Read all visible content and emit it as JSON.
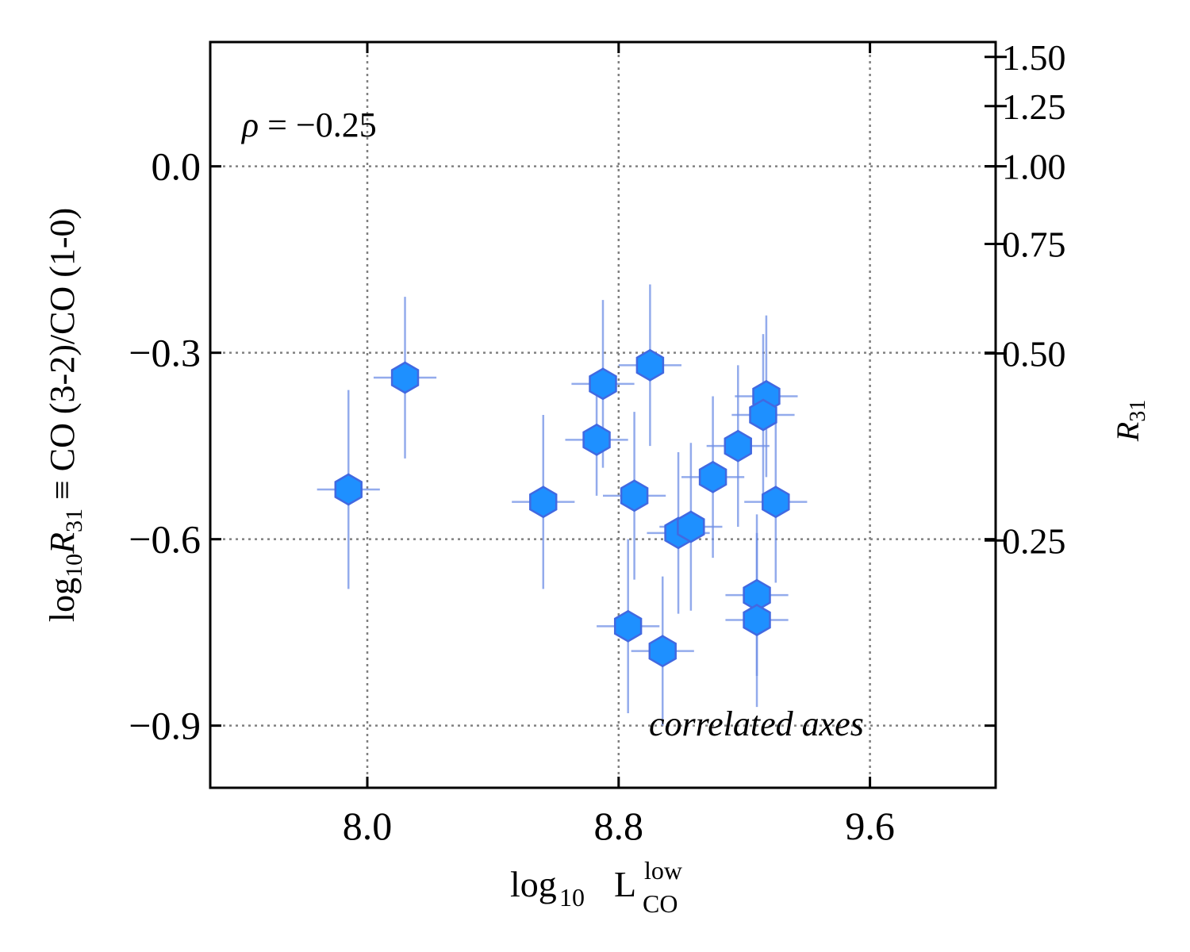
{
  "chart_data": {
    "type": "scatter",
    "x": [
      7.94,
      8.12,
      8.56,
      8.75,
      8.73,
      8.9,
      8.85,
      8.83,
      8.94,
      8.99,
      9.03,
      9.1,
      9.18,
      9.27,
      9.26,
      9.3,
      9.24,
      9.24
    ],
    "values": [
      -0.52,
      -0.34,
      -0.54,
      -0.35,
      -0.44,
      -0.32,
      -0.53,
      -0.74,
      -0.78,
      -0.59,
      -0.58,
      -0.5,
      -0.45,
      -0.37,
      -0.4,
      -0.54,
      -0.69,
      -0.73
    ],
    "xerr": [
      0.1,
      0.1,
      0.1,
      0.1,
      0.1,
      0.1,
      0.1,
      0.1,
      0.1,
      0.1,
      0.1,
      0.1,
      0.1,
      0.1,
      0.1,
      0.1,
      0.1,
      0.1
    ],
    "yerr": [
      0.16,
      0.13,
      0.14,
      0.135,
      0.09,
      0.13,
      0.135,
      0.14,
      0.12,
      0.13,
      0.135,
      0.13,
      0.13,
      0.13,
      0.13,
      0.13,
      0.13,
      0.14
    ],
    "color": "#1e90ff",
    "edgecolor": "#4169e1",
    "errcolor": "#6f8fe6",
    "xlim": [
      7.5,
      10.0
    ],
    "xticks": [
      {
        "value": 8,
        "label": "8.0"
      },
      8.8,
      9.6
    ],
    "ylim": [
      -1.0,
      0.2
    ],
    "yticks": [
      {
        "value": -0.9,
        "label": "−0.9"
      },
      {
        "value": -0.6,
        "label": "−0.6"
      },
      {
        "value": -0.3,
        "label": "−0.3"
      },
      {
        "value": 0,
        "label": "0.0"
      }
    ],
    "y2scale": "log",
    "y2lim": [
      0.1,
      1.585
    ],
    "y2ticks": [
      {
        "value": 0.25,
        "label": "0.25"
      },
      {
        "value": 0.5,
        "label": "0.50"
      },
      {
        "value": 0.75,
        "label": "0.75"
      },
      {
        "value": 1,
        "label": "1.00"
      },
      {
        "value": 1.25,
        "label": "1.25"
      },
      {
        "value": 1.5,
        "label": "1.50"
      }
    ],
    "grid": true,
    "xlabel": {
      "main": "log",
      "sub": "10",
      "var": "L",
      "sup": "low",
      "varsub": "CO"
    },
    "ylabel": {
      "main": "log",
      "sub": "10",
      "var": "R",
      "varsub": "31",
      "rest": " ≡ CO (3-2)/CO (1-0)"
    },
    "y2label": {
      "var": "R",
      "varsub": "31"
    },
    "annotations": [
      {
        "symbol": "ρ",
        "text": " = −0.25"
      },
      {
        "text": "correlated axes"
      }
    ]
  }
}
